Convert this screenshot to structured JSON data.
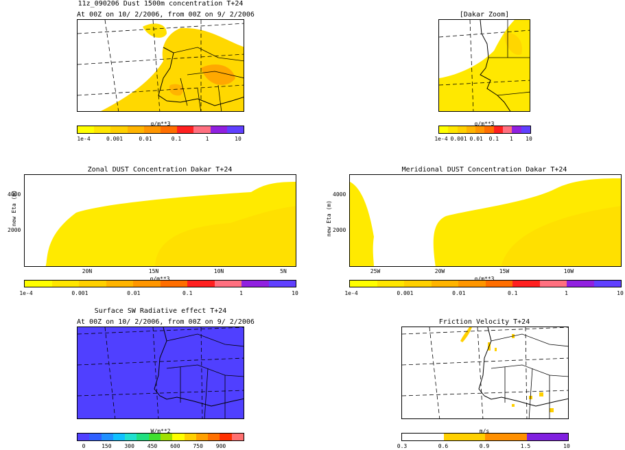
{
  "header": {
    "title": "11z_090206 Dust 1500m concentration T+24",
    "subtitle": "At 00Z on 10/ 2/2006, from 00Z on 9/ 2/2006",
    "zoom_title": "[Dakar Zoom]"
  },
  "units": {
    "conc": "g/m**3",
    "radiative": "W/m**2",
    "friction": "m/s"
  },
  "scale_conc": {
    "ticks": [
      "1e-4",
      "0.001",
      "0.01",
      "0.1",
      "1",
      "10"
    ],
    "colors": [
      "#ffff00",
      "#ffe600",
      "#ffd000",
      "#ffb400",
      "#ff9600",
      "#ff6e00",
      "#ff2020",
      "#ff7080",
      "#9020e0",
      "#6040ff"
    ]
  },
  "scale_conc_small": {
    "ticks": [
      "1e-4",
      "0.001",
      "0.01",
      "0.1",
      "1",
      "10"
    ]
  },
  "scale_rad": {
    "ticks": [
      "0",
      "150",
      "300",
      "450",
      "600",
      "750",
      "900"
    ],
    "colors": [
      "#5040ff",
      "#3060ff",
      "#2090ff",
      "#10c0ff",
      "#20e0d0",
      "#20e080",
      "#40e030",
      "#a0e000",
      "#ffff00",
      "#ffd000",
      "#ffa000",
      "#ff7000",
      "#ff3000",
      "#ff7070"
    ]
  },
  "scale_fric": {
    "ticks": [
      "0.3",
      "0.6",
      "0.9",
      "1.5",
      "10"
    ],
    "colors": [
      "#ffffff",
      "#ffd000",
      "#ff9000",
      "#8020e0"
    ]
  },
  "zonal": {
    "title": "Zonal DUST Concentration Dakar T+24",
    "ylabel": "new Eta (m)",
    "yticks": [
      "4000",
      "2000"
    ],
    "xticks": [
      "20N",
      "15N",
      "10N",
      "5N"
    ]
  },
  "meridional": {
    "title": "Meridional DUST Concentration Dakar T+24",
    "ylabel": "new Eta (m)",
    "yticks": [
      "4000",
      "2000"
    ],
    "xticks": [
      "25W",
      "20W",
      "15W",
      "10W"
    ]
  },
  "radiative": {
    "title": "Surface SW Radiative effect T+24",
    "subtitle": "At 00Z on 10/ 2/2006, from 00Z on 9/ 2/2006"
  },
  "friction": {
    "title": "Friction Velocity T+24"
  },
  "chart_data": [
    {
      "type": "heatmap",
      "panel": "dust-map",
      "title": "11z_090206 Dust 1500m concentration T+24",
      "units": "g/m**3",
      "colorbar_ticks": [
        0.0001,
        0.001,
        0.01,
        0.1,
        1,
        10
      ]
    },
    {
      "type": "heatmap",
      "panel": "dakar-zoom",
      "title": "[Dakar Zoom]",
      "units": "g/m**3",
      "colorbar_ticks": [
        0.0001,
        0.001,
        0.01,
        0.1,
        1,
        10
      ]
    },
    {
      "type": "heatmap",
      "panel": "zonal-section",
      "title": "Zonal DUST Concentration Dakar T+24",
      "ylabel": "new Eta (m)",
      "yticks": [
        2000,
        4000
      ],
      "xticks": [
        "20N",
        "15N",
        "10N",
        "5N"
      ],
      "units": "g/m**3"
    },
    {
      "type": "heatmap",
      "panel": "meridional-section",
      "title": "Meridional DUST Concentration Dakar T+24",
      "ylabel": "new Eta (m)",
      "yticks": [
        2000,
        4000
      ],
      "xticks": [
        "25W",
        "20W",
        "15W",
        "10W"
      ],
      "units": "g/m**3"
    },
    {
      "type": "heatmap",
      "panel": "radiative-map",
      "title": "Surface SW Radiative effect T+24",
      "units": "W/m**2",
      "colorbar_ticks": [
        0,
        150,
        300,
        450,
        600,
        750,
        900
      ]
    },
    {
      "type": "heatmap",
      "panel": "friction-map",
      "title": "Friction Velocity T+24",
      "units": "m/s",
      "colorbar_ticks": [
        0.3,
        0.6,
        0.9,
        1.5,
        10
      ]
    }
  ]
}
